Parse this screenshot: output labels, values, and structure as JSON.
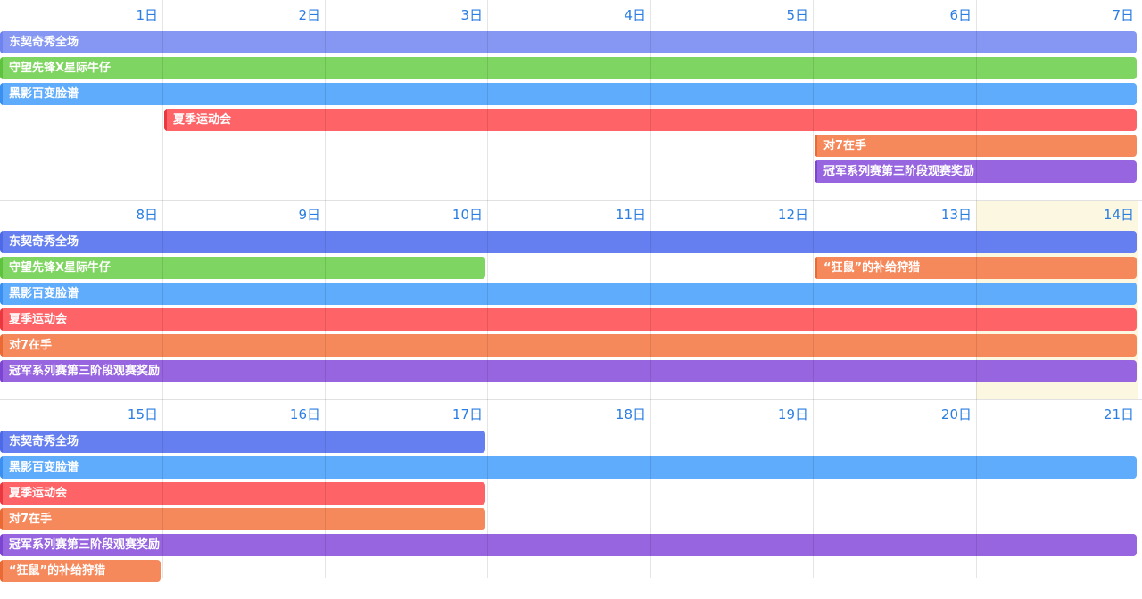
{
  "colors": {
    "day_text": "#2a7de1",
    "today_bg": "#fcf7e1",
    "grid_line": "#e3e3e3"
  },
  "weeks": [
    {
      "days": [
        "1日",
        "2日",
        "3日",
        "4日",
        "5日",
        "6日",
        "7日"
      ],
      "today_index": null,
      "events": [
        {
          "title": "东契奇秀全场",
          "start": 0,
          "end": 6,
          "row": 0,
          "color": "#8597f2",
          "edge": "#6f83ee"
        },
        {
          "title": "守望先锋X星际牛仔",
          "start": 0,
          "end": 6,
          "row": 1,
          "color": "#7fd561",
          "edge": "#5fc23e"
        },
        {
          "title": "黑影百变脸谱",
          "start": 0,
          "end": 6,
          "row": 2,
          "color": "#5fabfc",
          "edge": "#3b8ff0"
        },
        {
          "title": "夏季运动会",
          "start": 1,
          "end": 6,
          "row": 3,
          "color": "#fe6367",
          "edge": "#e9383f"
        },
        {
          "title": "对7在手",
          "start": 5,
          "end": 6,
          "row": 4,
          "color": "#f6895c",
          "edge": "#e96a35"
        },
        {
          "title": "冠军系列赛第三阶段观赛奖励",
          "start": 5,
          "end": 6,
          "row": 5,
          "color": "#9765df",
          "edge": "#7b44d1"
        }
      ]
    },
    {
      "days": [
        "8日",
        "9日",
        "10日",
        "11日",
        "12日",
        "13日",
        "14日"
      ],
      "today_index": 6,
      "events": [
        {
          "title": "东契奇秀全场",
          "start": 0,
          "end": 6,
          "row": 0,
          "color": "#667ff0",
          "edge": "#4e69e6"
        },
        {
          "title": "守望先锋X星际牛仔",
          "start": 0,
          "end": 2,
          "row": 1,
          "color": "#7fd561",
          "edge": "#5fc23e"
        },
        {
          "title": "“狂鼠”的补给狩猎",
          "start": 5,
          "end": 6,
          "row": 1,
          "color": "#f6895c",
          "edge": "#e96a35"
        },
        {
          "title": "黑影百变脸谱",
          "start": 0,
          "end": 6,
          "row": 2,
          "color": "#5fabfc",
          "edge": "#3b8ff0"
        },
        {
          "title": "夏季运动会",
          "start": 0,
          "end": 6,
          "row": 3,
          "color": "#fe6367",
          "edge": "#e9383f"
        },
        {
          "title": "对7在手",
          "start": 0,
          "end": 6,
          "row": 4,
          "color": "#f6895c",
          "edge": "#e96a35"
        },
        {
          "title": "冠军系列赛第三阶段观赛奖励",
          "start": 0,
          "end": 6,
          "row": 5,
          "color": "#9765df",
          "edge": "#7b44d1"
        }
      ]
    },
    {
      "days": [
        "15日",
        "16日",
        "17日",
        "18日",
        "19日",
        "20日",
        "21日"
      ],
      "today_index": null,
      "events": [
        {
          "title": "东契奇秀全场",
          "start": 0,
          "end": 2,
          "row": 0,
          "color": "#667ff0",
          "edge": "#4e69e6"
        },
        {
          "title": "黑影百变脸谱",
          "start": 0,
          "end": 6,
          "row": 1,
          "color": "#5fabfc",
          "edge": "#3b8ff0"
        },
        {
          "title": "夏季运动会",
          "start": 0,
          "end": 2,
          "row": 2,
          "color": "#fe6367",
          "edge": "#e9383f"
        },
        {
          "title": "对7在手",
          "start": 0,
          "end": 2,
          "row": 3,
          "color": "#f6895c",
          "edge": "#e96a35"
        },
        {
          "title": "冠军系列赛第三阶段观赛奖励",
          "start": 0,
          "end": 6,
          "row": 4,
          "color": "#9765df",
          "edge": "#7b44d1"
        },
        {
          "title": "“狂鼠”的补给狩猎",
          "start": 0,
          "end": 0,
          "row": 5,
          "color": "#f6895c",
          "edge": "#e96a35"
        }
      ]
    }
  ]
}
